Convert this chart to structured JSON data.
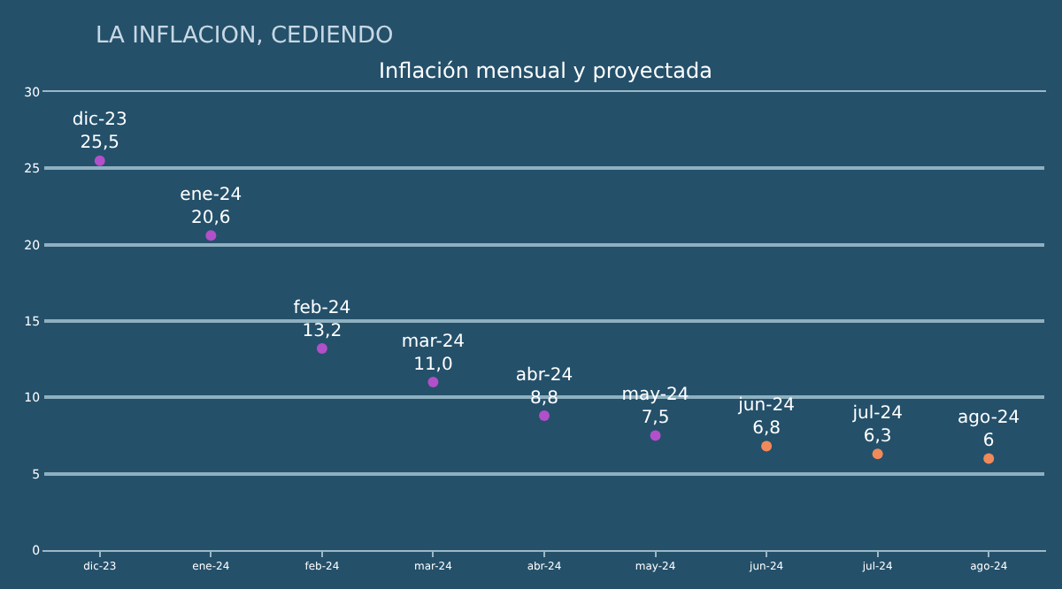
{
  "chart_data": {
    "type": "scatter",
    "title": "LA INFLACION, CEDIENDO",
    "subtitle": "Inflación mensual y proyectada",
    "categories": [
      "dic-23",
      "ene-24",
      "feb-24",
      "mar-24",
      "abr-24",
      "may-24",
      "jun-24",
      "jul-24",
      "ago-24"
    ],
    "values": [
      25.5,
      20.6,
      13.2,
      11.0,
      8.8,
      7.5,
      6.8,
      6.3,
      6
    ],
    "value_labels": [
      "25,5",
      "20,6",
      "13,2",
      "11,0",
      "8,8",
      "7,5",
      "6,8",
      "6,3",
      "6"
    ],
    "colors": [
      "#b150c8",
      "#b150c8",
      "#b150c8",
      "#b150c8",
      "#b150c8",
      "#b150c8",
      "#f08a5a",
      "#f08a5a",
      "#f08a5a"
    ],
    "ylim": [
      0,
      30
    ],
    "yticks": [
      0,
      5,
      10,
      15,
      20,
      25,
      30
    ],
    "grid": "y",
    "marker": "circle",
    "legend": false
  }
}
